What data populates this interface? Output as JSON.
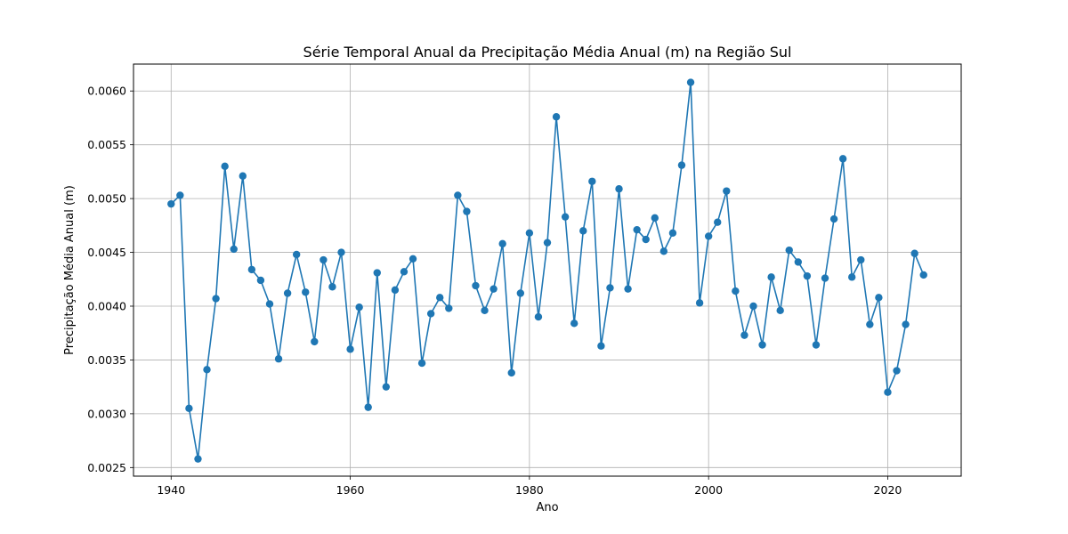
{
  "chart_data": {
    "type": "line",
    "title": "Série Temporal Anual da Precipitação Média Anual (m) na Região Sul",
    "xlabel": "Ano",
    "ylabel": "Precipitação Média Anual (m)",
    "grid": true,
    "marker": "circle",
    "color": "#1f77b4",
    "xlim": [
      1935.8,
      2028.2
    ],
    "ylim": [
      0.00242,
      0.00625
    ],
    "x_ticks": [
      1940,
      1960,
      1980,
      2000,
      2020
    ],
    "x_tick_labels": [
      "1940",
      "1960",
      "1980",
      "2000",
      "2020"
    ],
    "y_ticks": [
      0.0025,
      0.003,
      0.0035,
      0.004,
      0.0045,
      0.005,
      0.0055,
      0.006
    ],
    "y_tick_labels": [
      "0.0025",
      "0.0030",
      "0.0035",
      "0.0040",
      "0.0045",
      "0.0050",
      "0.0055",
      "0.0060"
    ],
    "x": [
      1940,
      1941,
      1942,
      1943,
      1944,
      1945,
      1946,
      1947,
      1948,
      1949,
      1950,
      1951,
      1952,
      1953,
      1954,
      1955,
      1956,
      1957,
      1958,
      1959,
      1960,
      1961,
      1962,
      1963,
      1964,
      1965,
      1966,
      1967,
      1968,
      1969,
      1970,
      1971,
      1972,
      1973,
      1974,
      1975,
      1976,
      1977,
      1978,
      1979,
      1980,
      1981,
      1982,
      1983,
      1984,
      1985,
      1986,
      1987,
      1988,
      1989,
      1990,
      1991,
      1992,
      1993,
      1994,
      1995,
      1996,
      1997,
      1998,
      1999,
      2000,
      2001,
      2002,
      2003,
      2004,
      2005,
      2006,
      2007,
      2008,
      2009,
      2010,
      2011,
      2012,
      2013,
      2014,
      2015,
      2016,
      2017,
      2018,
      2019,
      2020,
      2021,
      2022,
      2023,
      2024
    ],
    "series": [
      {
        "values": [
          0.00495,
          0.00503,
          0.00305,
          0.00258,
          0.00341,
          0.00407,
          0.0053,
          0.00453,
          0.00521,
          0.00434,
          0.00424,
          0.00402,
          0.00351,
          0.00412,
          0.00448,
          0.00413,
          0.00367,
          0.00443,
          0.00418,
          0.0045,
          0.0036,
          0.00399,
          0.00306,
          0.00431,
          0.00325,
          0.00415,
          0.00432,
          0.00444,
          0.00347,
          0.00393,
          0.00408,
          0.00398,
          0.00503,
          0.00488,
          0.00419,
          0.00396,
          0.00416,
          0.00458,
          0.00338,
          0.00412,
          0.00468,
          0.0039,
          0.00459,
          0.00576,
          0.00483,
          0.00384,
          0.0047,
          0.00516,
          0.00363,
          0.00417,
          0.00509,
          0.00416,
          0.00471,
          0.00462,
          0.00482,
          0.00451,
          0.00468,
          0.00531,
          0.00608,
          0.00403,
          0.00465,
          0.00478,
          0.00507,
          0.00414,
          0.00373,
          0.004,
          0.00364,
          0.00427,
          0.00396,
          0.00452,
          0.00441,
          0.00428,
          0.00364,
          0.00426,
          0.00481,
          0.00537,
          0.00427,
          0.00443,
          0.00383,
          0.00408,
          0.0032,
          0.0034,
          0.00383,
          0.00449,
          0.00429
        ]
      }
    ]
  }
}
